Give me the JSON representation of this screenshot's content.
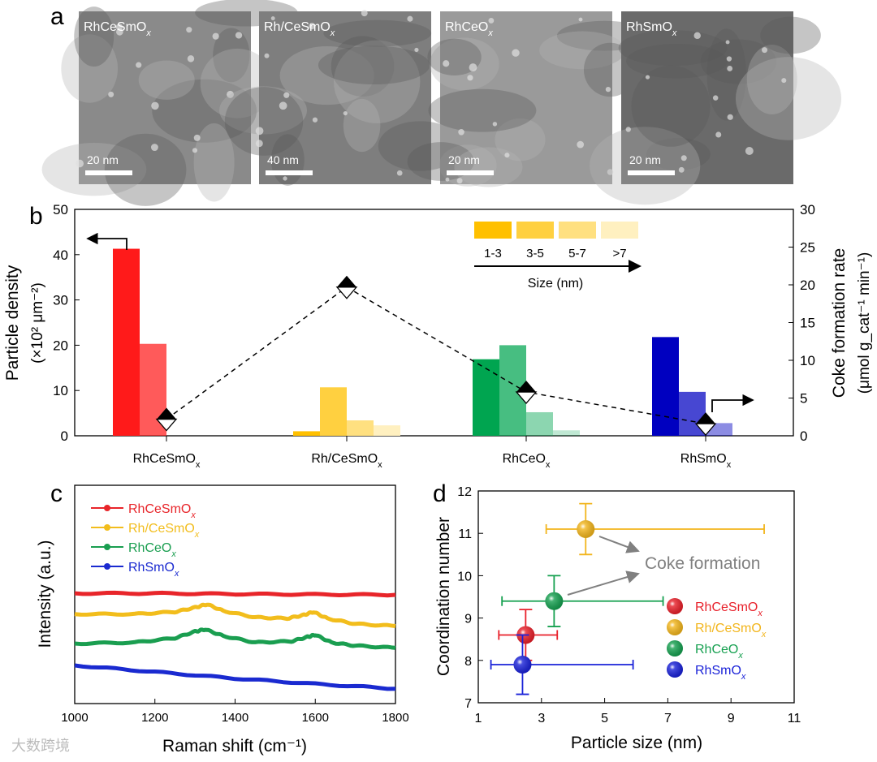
{
  "panel_labels": {
    "a": "a",
    "b": "b",
    "c": "c",
    "d": "d"
  },
  "panel_a": {
    "images": [
      {
        "label": "RhCeSmO",
        "sub": "x",
        "scale": "20 nm",
        "tone": "#8a8a8a"
      },
      {
        "label": "Rh/CeSmO",
        "sub": "x",
        "scale": "40 nm",
        "tone": "#7e7e7e"
      },
      {
        "label": "RhCeO",
        "sub": "x",
        "scale": "20 nm",
        "tone": "#9a9a9a"
      },
      {
        "label": "RhSmO",
        "sub": "x",
        "scale": "20 nm",
        "tone": "#6a6a6a"
      }
    ]
  },
  "watermark": "大数跨境",
  "chart_data": [
    {
      "type": "bar",
      "panel": "b",
      "categories": [
        "RhCeSmOx",
        "Rh/CeSmOx",
        "RhCeOx",
        "RhSmOx"
      ],
      "size_bins": [
        "1-3",
        "3-5",
        "5-7",
        ">7"
      ],
      "size_axis_label": "Size (nm)",
      "series": [
        {
          "name": "RhCeSmOx",
          "color": "#ff1a1a",
          "values": [
            41.3,
            20.3,
            0,
            0
          ]
        },
        {
          "name": "Rh/CeSmOx",
          "color": "#ffc000",
          "values": [
            1.0,
            10.7,
            3.4,
            2.3
          ]
        },
        {
          "name": "RhCeOx",
          "color": "#00a550",
          "values": [
            16.9,
            20.0,
            5.2,
            1.2
          ]
        },
        {
          "name": "RhSmOx",
          "color": "#0000c0",
          "values": [
            21.8,
            9.7,
            2.8,
            0
          ]
        }
      ],
      "bin_colors": [
        "#ffc000",
        "#ffd040",
        "#ffe080",
        "#fff0c0"
      ],
      "coke_rate": {
        "values": [
          2.2,
          19.7,
          5.8,
          1.6
        ]
      },
      "ylabel": "Particle density",
      "ylabel2": "(×10² μm⁻²)",
      "ylim": [
        0,
        50
      ],
      "yticks": [
        0,
        10,
        20,
        30,
        40,
        50
      ],
      "y2label": "Coke formation rate",
      "y2label2": "(μmol g_cat⁻¹ min⁻¹)",
      "y2lim": [
        0,
        30
      ],
      "y2ticks": [
        0,
        5,
        10,
        15,
        20,
        25,
        30
      ],
      "legend": "top-right"
    },
    {
      "type": "line",
      "panel": "c",
      "xlabel": "Raman shift (cm⁻¹)",
      "ylabel": "Intensity (a.u.)",
      "xlim": [
        1000,
        1800
      ],
      "xticks": [
        1000,
        1200,
        1400,
        1600,
        1800
      ],
      "ylim": [
        0,
        1
      ],
      "series": [
        {
          "name": "RhCeSmO",
          "sub": "x",
          "color": "#e8252a",
          "points": [
            [
              1000,
              0.505
            ],
            [
              1200,
              0.505
            ],
            [
              1400,
              0.502
            ],
            [
              1600,
              0.5
            ],
            [
              1800,
              0.498
            ]
          ]
        },
        {
          "name": "Rh/CeSmO",
          "sub": "x",
          "color": "#f2bd1c",
          "points": [
            [
              1000,
              0.41
            ],
            [
              1150,
              0.41
            ],
            [
              1250,
              0.42
            ],
            [
              1300,
              0.44
            ],
            [
              1330,
              0.455
            ],
            [
              1370,
              0.425
            ],
            [
              1450,
              0.395
            ],
            [
              1530,
              0.39
            ],
            [
              1570,
              0.405
            ],
            [
              1595,
              0.42
            ],
            [
              1630,
              0.39
            ],
            [
              1700,
              0.365
            ],
            [
              1800,
              0.355
            ]
          ]
        },
        {
          "name": "RhCeO",
          "sub": "x",
          "color": "#1a9e50",
          "points": [
            [
              1000,
              0.275
            ],
            [
              1150,
              0.28
            ],
            [
              1250,
              0.3
            ],
            [
              1300,
              0.33
            ],
            [
              1325,
              0.34
            ],
            [
              1370,
              0.31
            ],
            [
              1450,
              0.28
            ],
            [
              1540,
              0.285
            ],
            [
              1580,
              0.305
            ],
            [
              1600,
              0.315
            ],
            [
              1640,
              0.28
            ],
            [
              1700,
              0.265
            ],
            [
              1800,
              0.255
            ]
          ]
        },
        {
          "name": "RhSmO",
          "sub": "x",
          "color": "#1a2ad0",
          "points": [
            [
              1000,
              0.175
            ],
            [
              1200,
              0.145
            ],
            [
              1400,
              0.115
            ],
            [
              1600,
              0.09
            ],
            [
              1800,
              0.068
            ]
          ]
        }
      ]
    },
    {
      "type": "scatter",
      "panel": "d",
      "xlabel": "Particle size (nm)",
      "ylabel": "Coordination number",
      "xlim": [
        1,
        11
      ],
      "ylim": [
        7,
        12
      ],
      "xticks": [
        1,
        3,
        5,
        7,
        9,
        11
      ],
      "yticks": [
        7,
        8,
        9,
        10,
        11,
        12
      ],
      "annotation": "Coke formation",
      "points": [
        {
          "name": "RhCeSmO",
          "sub": "x",
          "color": "#e8202a",
          "x": 2.5,
          "xerr": [
            1.65,
            3.5
          ],
          "y": 8.6,
          "yerr": [
            8.0,
            9.2
          ]
        },
        {
          "name": "Rh/CeSmO",
          "sub": "x",
          "color": "#f2b51c",
          "x": 4.4,
          "xerr": [
            3.15,
            10.05
          ],
          "y": 11.1,
          "yerr": [
            10.5,
            11.7
          ]
        },
        {
          "name": "RhCeO",
          "sub": "x",
          "color": "#16a050",
          "x": 3.4,
          "xerr": [
            1.75,
            6.85
          ],
          "y": 9.4,
          "yerr": [
            8.8,
            10.0
          ]
        },
        {
          "name": "RhSmO",
          "sub": "x",
          "color": "#1a22d8",
          "x": 2.4,
          "xerr": [
            1.4,
            5.9
          ],
          "y": 7.9,
          "yerr": [
            7.2,
            8.6
          ]
        }
      ]
    }
  ]
}
